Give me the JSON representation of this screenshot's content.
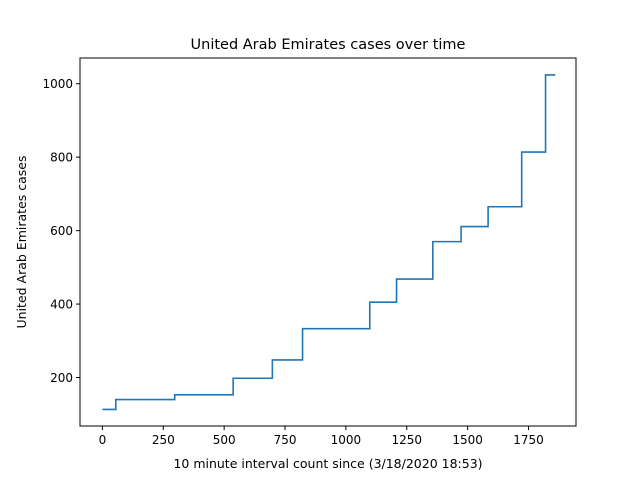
{
  "chart_data": {
    "type": "line",
    "step": true,
    "title": "United Arab Emirates cases over time",
    "xlabel": "10 minute interval count since (3/18/2020 18:53)",
    "ylabel": "United Arab Emirates cases",
    "xlim": [
      -92,
      1945
    ],
    "ylim": [
      68,
      1070
    ],
    "x_ticks": [
      0,
      250,
      500,
      750,
      1000,
      1250,
      1500,
      1750
    ],
    "x_tick_labels": [
      "0",
      "250",
      "500",
      "750",
      "1000",
      "1250",
      "1500",
      "1750"
    ],
    "y_ticks": [
      200,
      400,
      600,
      800,
      1000
    ],
    "y_tick_labels": [
      "200",
      "400",
      "600",
      "800",
      "1000"
    ],
    "grid": false,
    "line_color": "#1f77b4",
    "series": [
      {
        "x": [
          0,
          55,
          297,
          537,
          698,
          822,
          1098,
          1208,
          1357,
          1473,
          1584,
          1722,
          1820,
          1860
        ],
        "y": [
          113,
          140,
          153,
          198,
          248,
          333,
          405,
          468,
          570,
          611,
          665,
          814,
          1024,
          1024
        ]
      }
    ]
  }
}
